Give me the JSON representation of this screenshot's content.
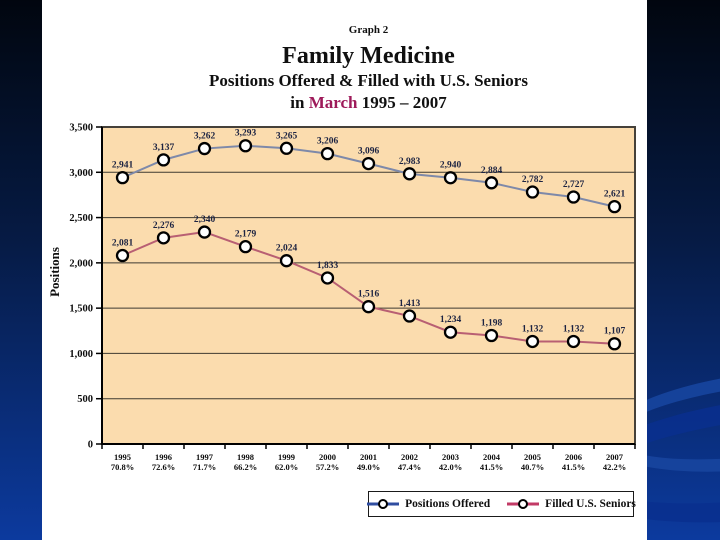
{
  "slide": {
    "graph_label": "Graph 2",
    "title": "Family Medicine",
    "subtitle_line1": "Positions Offered & Filled with U.S. Seniors",
    "subtitle_line2_prefix": "in ",
    "subtitle_line2_highlight": "March",
    "subtitle_line2_suffix": " 1995 – 2007",
    "highlight_color": "#9e1a5a"
  },
  "chart_data": {
    "type": "line",
    "title": "Family Medicine — Positions Offered & Filled with U.S. Seniors in March 1995 – 2007",
    "xlabel": "",
    "ylabel": "Positions",
    "ylim": [
      0,
      3500
    ],
    "ytick_interval": 500,
    "grid": true,
    "legend_position": "bottom",
    "plot_background": "#fbdcae",
    "grid_color": "#3e3a31",
    "categories": [
      "1995",
      "1996",
      "1997",
      "1998",
      "1999",
      "2000",
      "2001",
      "2002",
      "2003",
      "2004",
      "2005",
      "2006",
      "2007"
    ],
    "category_sublabels": [
      "70.8%",
      "72.6%",
      "71.7%",
      "66.2%",
      "62.0%",
      "57.2%",
      "49.0%",
      "47.4%",
      "42.0%",
      "41.5%",
      "40.7%",
      "41.5%",
      "42.2%"
    ],
    "series": [
      {
        "name": "Positions Offered",
        "line_color": "#7e89a9",
        "legend_color": "#2f4da0",
        "marker": "circle-white-black-ring",
        "values": [
          2941,
          3137,
          3262,
          3293,
          3265,
          3206,
          3096,
          2983,
          2940,
          2884,
          2782,
          2727,
          2621
        ]
      },
      {
        "name": "Filled U.S. Seniors",
        "line_color": "#b85f73",
        "legend_color": "#c23a66",
        "marker": "circle-white-black-ring",
        "values": [
          2081,
          2276,
          2340,
          2179,
          2024,
          1833,
          1516,
          1413,
          1234,
          1198,
          1132,
          1132,
          1107
        ]
      }
    ]
  }
}
